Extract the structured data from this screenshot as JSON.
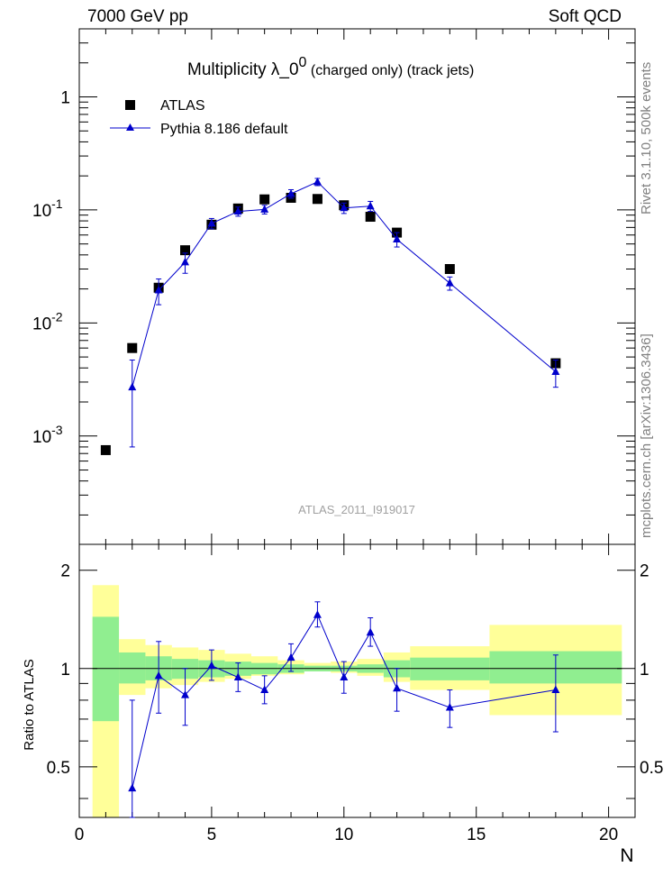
{
  "header": {
    "left": "7000 GeV pp",
    "right": "Soft QCD"
  },
  "side_labels": {
    "rivet": "Rivet 3.1.10,  500k events",
    "mcplots": "mcplots.cern.ch [arXiv:1306.3436]"
  },
  "watermark": "ATLAS_2011_I919017",
  "colors": {
    "atlas": "#000000",
    "pythia": "#0000cc",
    "band_inner": "#90ee90",
    "band_outer": "#ffff99"
  },
  "chart_data": [
    {
      "type": "scatter",
      "panel": "main",
      "title": {
        "main": "Multiplicity  λ_0",
        "sup": "0",
        "suffix": " (charged only) (track jets)"
      },
      "yscale": "log",
      "xlim": [
        0,
        21
      ],
      "ylim": [
        0.00011,
        4
      ],
      "y_tick_labels": [
        {
          "base": "10",
          "exp": "-3",
          "value": 0.001
        },
        {
          "base": "10",
          "exp": "-2",
          "value": 0.01
        },
        {
          "base": "10",
          "exp": "-1",
          "value": 0.1
        },
        {
          "base": "1",
          "exp": "",
          "value": 1
        }
      ],
      "legend": [
        {
          "name": "ATLAS",
          "marker": "square",
          "color": "#000000"
        },
        {
          "name": "Pythia 8.186 default",
          "marker": "triangle",
          "color": "#0000cc"
        }
      ],
      "series": [
        {
          "name": "ATLAS",
          "x": [
            1,
            2,
            3,
            4,
            5,
            6,
            7,
            8,
            9,
            10,
            11,
            12,
            14,
            18
          ],
          "y": [
            0.00075,
            0.006,
            0.0205,
            0.044,
            0.074,
            0.103,
            0.124,
            0.128,
            0.125,
            0.11,
            0.087,
            0.063,
            0.03,
            0.0044
          ]
        },
        {
          "name": "Pythia 8.186 default",
          "x": [
            2,
            3,
            4,
            5,
            6,
            7,
            8,
            9,
            10,
            11,
            12,
            14,
            18
          ],
          "y": [
            0.0027,
            0.0195,
            0.0345,
            0.076,
            0.097,
            0.101,
            0.139,
            0.177,
            0.104,
            0.108,
            0.055,
            0.0225,
            0.0037
          ],
          "yerr_low": [
            0.0019,
            0.005,
            0.007,
            0.008,
            0.009,
            0.009,
            0.012,
            0.013,
            0.011,
            0.011,
            0.008,
            0.003,
            0.001
          ],
          "yerr_high": [
            0.002,
            0.005,
            0.007,
            0.008,
            0.009,
            0.009,
            0.012,
            0.013,
            0.011,
            0.011,
            0.008,
            0.003,
            0.001
          ]
        }
      ]
    },
    {
      "type": "scatter",
      "panel": "ratio",
      "ylabel": "Ratio to ATLAS",
      "xlabel": "N",
      "xlim": [
        0,
        21
      ],
      "ylim": [
        0.35,
        2.4
      ],
      "x_tick_labels": [
        "0",
        "5",
        "10",
        "15",
        "20"
      ],
      "y_tick_labels": [
        "0.5",
        "1",
        "2"
      ],
      "bands": {
        "edges": [
          0.5,
          1.5,
          2.5,
          3.5,
          4.5,
          5.5,
          6.5,
          7.5,
          8.5,
          9.5,
          10.5,
          11.5,
          12.5,
          15.5,
          20.5
        ],
        "inner_low": [
          0.69,
          0.9,
          0.92,
          0.93,
          0.94,
          0.95,
          0.96,
          0.97,
          0.98,
          0.98,
          0.97,
          0.94,
          0.92,
          0.9
        ],
        "inner_high": [
          1.44,
          1.12,
          1.09,
          1.07,
          1.06,
          1.05,
          1.04,
          1.03,
          1.02,
          1.02,
          1.03,
          1.06,
          1.08,
          1.13
        ],
        "outer_low": [
          0.35,
          0.83,
          0.87,
          0.89,
          0.91,
          0.93,
          0.95,
          0.96,
          0.98,
          0.97,
          0.95,
          0.91,
          0.86,
          0.72
        ],
        "outer_high": [
          1.8,
          1.23,
          1.18,
          1.16,
          1.14,
          1.11,
          1.09,
          1.06,
          1.04,
          1.05,
          1.07,
          1.12,
          1.17,
          1.36
        ]
      },
      "series": [
        {
          "name": "Pythia 8.186 default",
          "x": [
            2,
            3,
            4,
            5,
            6,
            7,
            8,
            9,
            10,
            11,
            12,
            14,
            18
          ],
          "y": [
            0.43,
            0.95,
            0.83,
            1.02,
            0.94,
            0.86,
            1.08,
            1.46,
            0.94,
            1.29,
            0.87,
            0.76,
            0.86
          ],
          "yerr_low": [
            0.33,
            0.22,
            0.16,
            0.1,
            0.09,
            0.08,
            0.1,
            0.12,
            0.1,
            0.12,
            0.13,
            0.1,
            0.22
          ],
          "yerr_high": [
            0.37,
            0.26,
            0.17,
            0.12,
            0.1,
            0.09,
            0.11,
            0.14,
            0.11,
            0.14,
            0.13,
            0.1,
            0.24
          ]
        }
      ]
    }
  ]
}
